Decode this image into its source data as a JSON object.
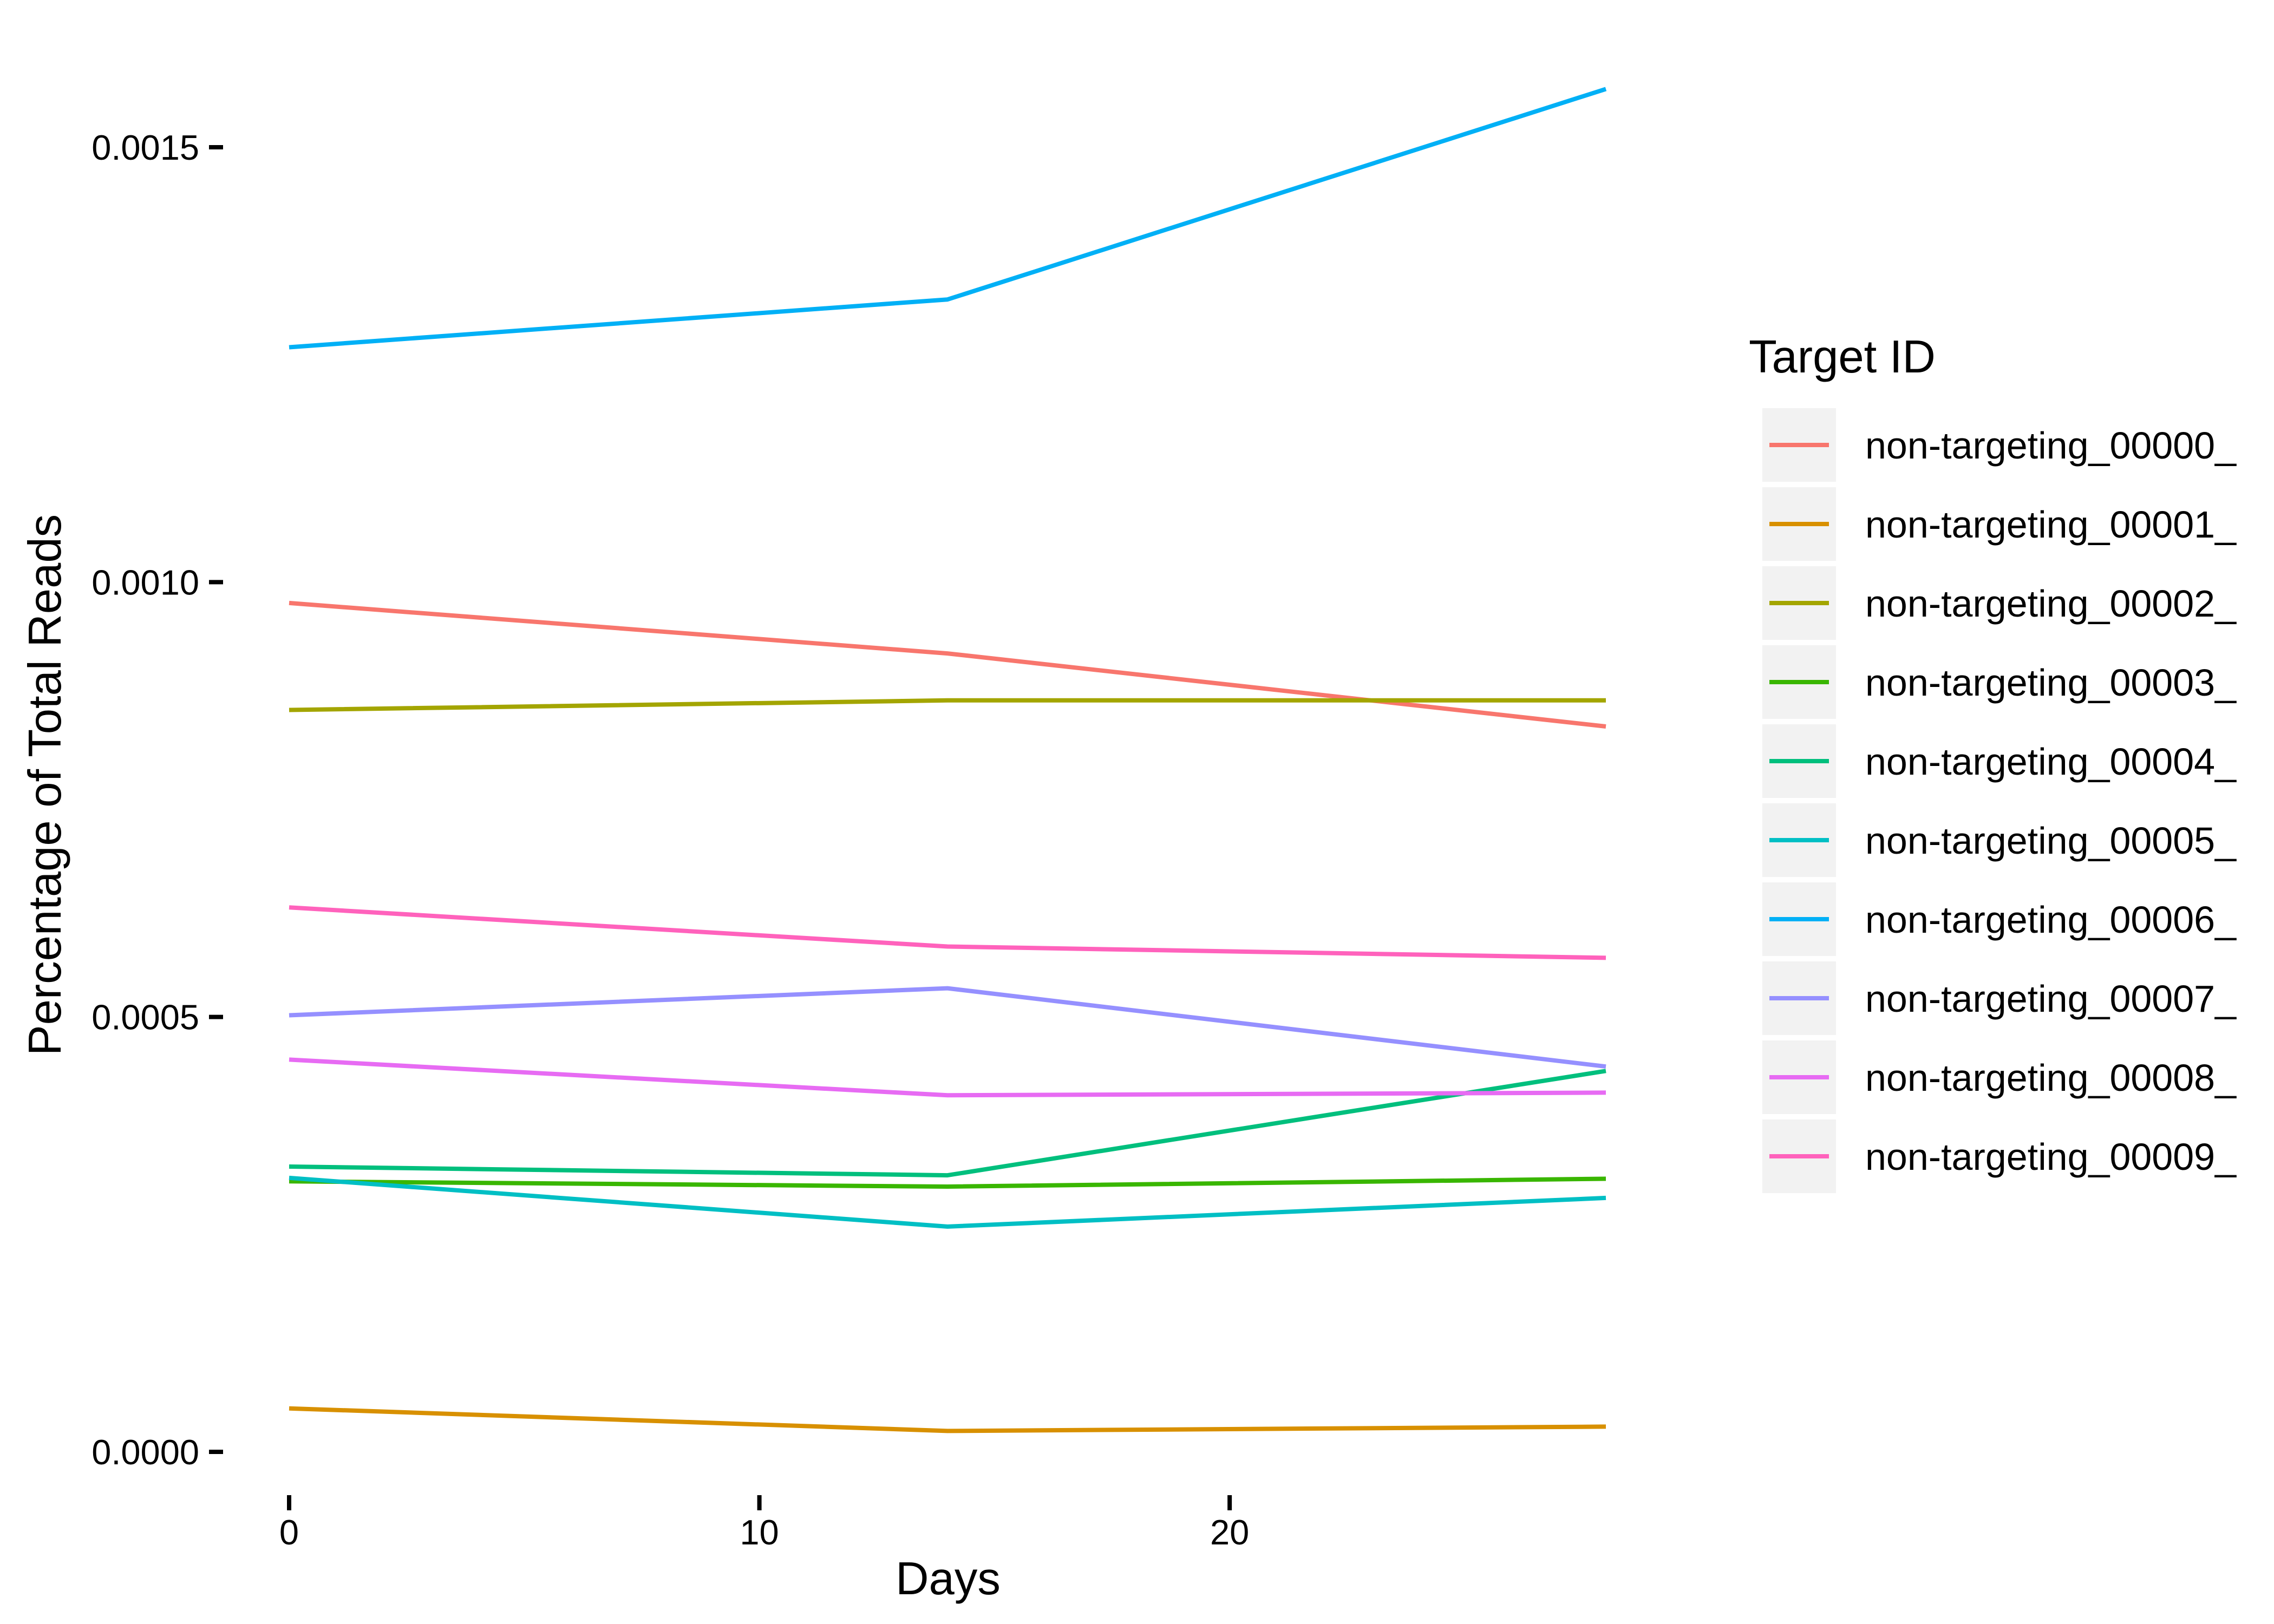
{
  "chart_data": {
    "type": "line",
    "title": "",
    "xlabel": "Days",
    "ylabel": "Percentage of Total Reads",
    "xlim": [
      0,
      28
    ],
    "ylim": [
      -4e-05,
      0.00162
    ],
    "x_ticks": [
      0,
      10,
      20
    ],
    "x_tick_labels": [
      "0",
      "10",
      "20"
    ],
    "y_ticks": [
      0.0,
      0.0005,
      0.001,
      0.0015
    ],
    "y_tick_labels": [
      "0.0000",
      "0.0005",
      "0.0010",
      "0.0015"
    ],
    "grid": false,
    "legend": {
      "title": "Target ID",
      "position": "right"
    },
    "x": [
      0,
      14,
      28
    ],
    "series": [
      {
        "name": "non-targeting_00000_",
        "color": "#F8766D",
        "values": [
          0.000976,
          0.000918,
          0.000834
        ]
      },
      {
        "name": "non-targeting_00001_",
        "color": "#D89000",
        "values": [
          5e-05,
          2.4e-05,
          2.9e-05
        ]
      },
      {
        "name": "non-targeting_00002_",
        "color": "#A3A500",
        "values": [
          0.000853,
          0.000864,
          0.000864
        ]
      },
      {
        "name": "non-targeting_00003_",
        "color": "#39B600",
        "values": [
          0.000311,
          0.000305,
          0.000314
        ]
      },
      {
        "name": "non-targeting_00004_",
        "color": "#00BF7D",
        "values": [
          0.000328,
          0.000318,
          0.000438
        ]
      },
      {
        "name": "non-targeting_00005_",
        "color": "#00BFC4",
        "values": [
          0.000315,
          0.000259,
          0.000292
        ]
      },
      {
        "name": "non-targeting_00006_",
        "color": "#00B0F6",
        "values": [
          0.00127,
          0.001325,
          0.001567
        ]
      },
      {
        "name": "non-targeting_00007_",
        "color": "#9590FF",
        "values": [
          0.000502,
          0.000533,
          0.000443
        ]
      },
      {
        "name": "non-targeting_00008_",
        "color": "#E76BF3",
        "values": [
          0.000451,
          0.00041,
          0.000413
        ]
      },
      {
        "name": "non-targeting_00009_",
        "color": "#FF62BC",
        "values": [
          0.000626,
          0.000581,
          0.000568
        ]
      }
    ]
  }
}
